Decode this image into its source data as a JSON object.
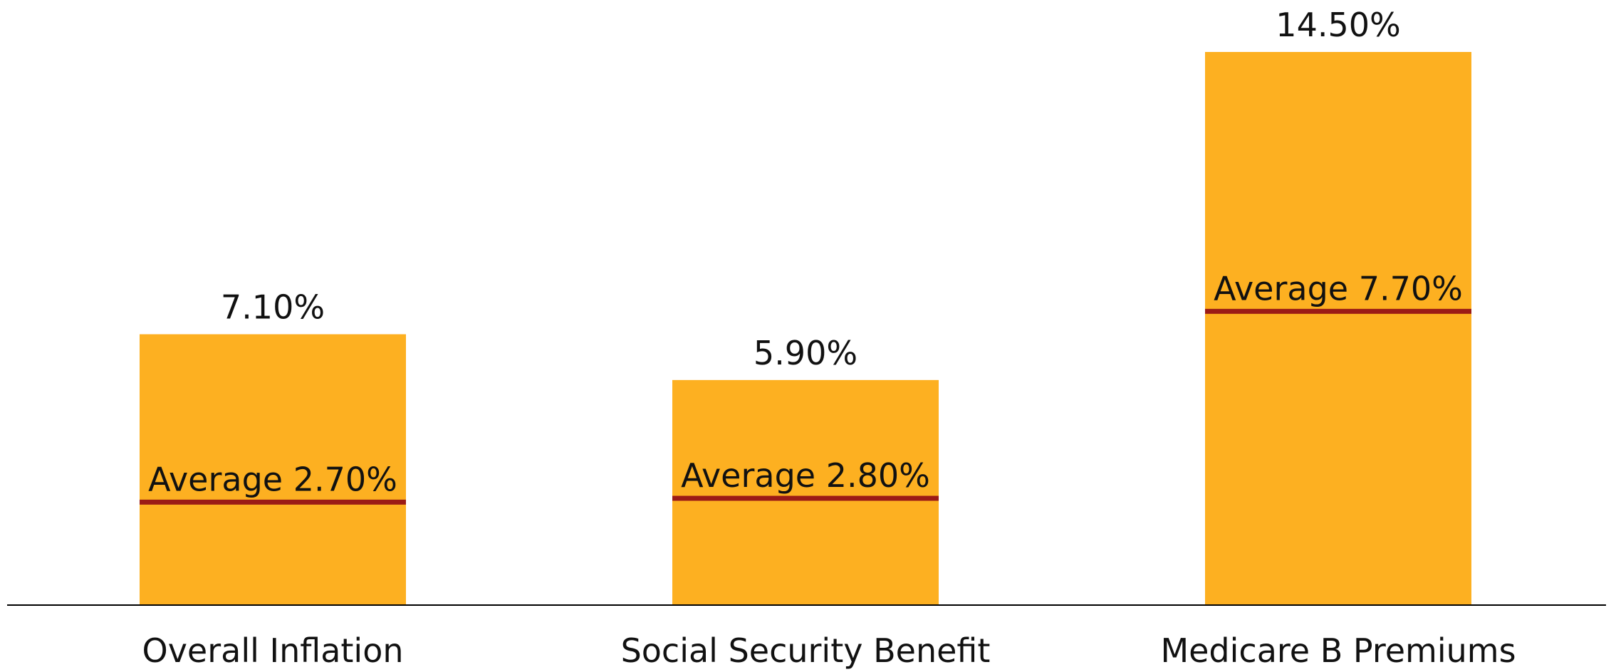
{
  "chart_data": {
    "type": "bar",
    "title": "",
    "xlabel": "",
    "ylabel": "",
    "ylim": [
      0,
      15
    ],
    "grid": false,
    "categories": [
      "Overall Inflation",
      "Social Security Benefit",
      "Medicare B Premiums"
    ],
    "values": [
      7.1,
      5.9,
      14.5
    ],
    "value_labels": [
      "7.10%",
      "5.90%",
      "14.50%"
    ],
    "averages": [
      2.7,
      2.8,
      7.7
    ],
    "average_labels": [
      "Average 2.70%",
      "Average 2.80%",
      "Average 7.70%"
    ],
    "colors": {
      "bar": "#FDB021",
      "average_line": "#9B1B16",
      "axis": "#000000",
      "text": "#111111"
    }
  }
}
